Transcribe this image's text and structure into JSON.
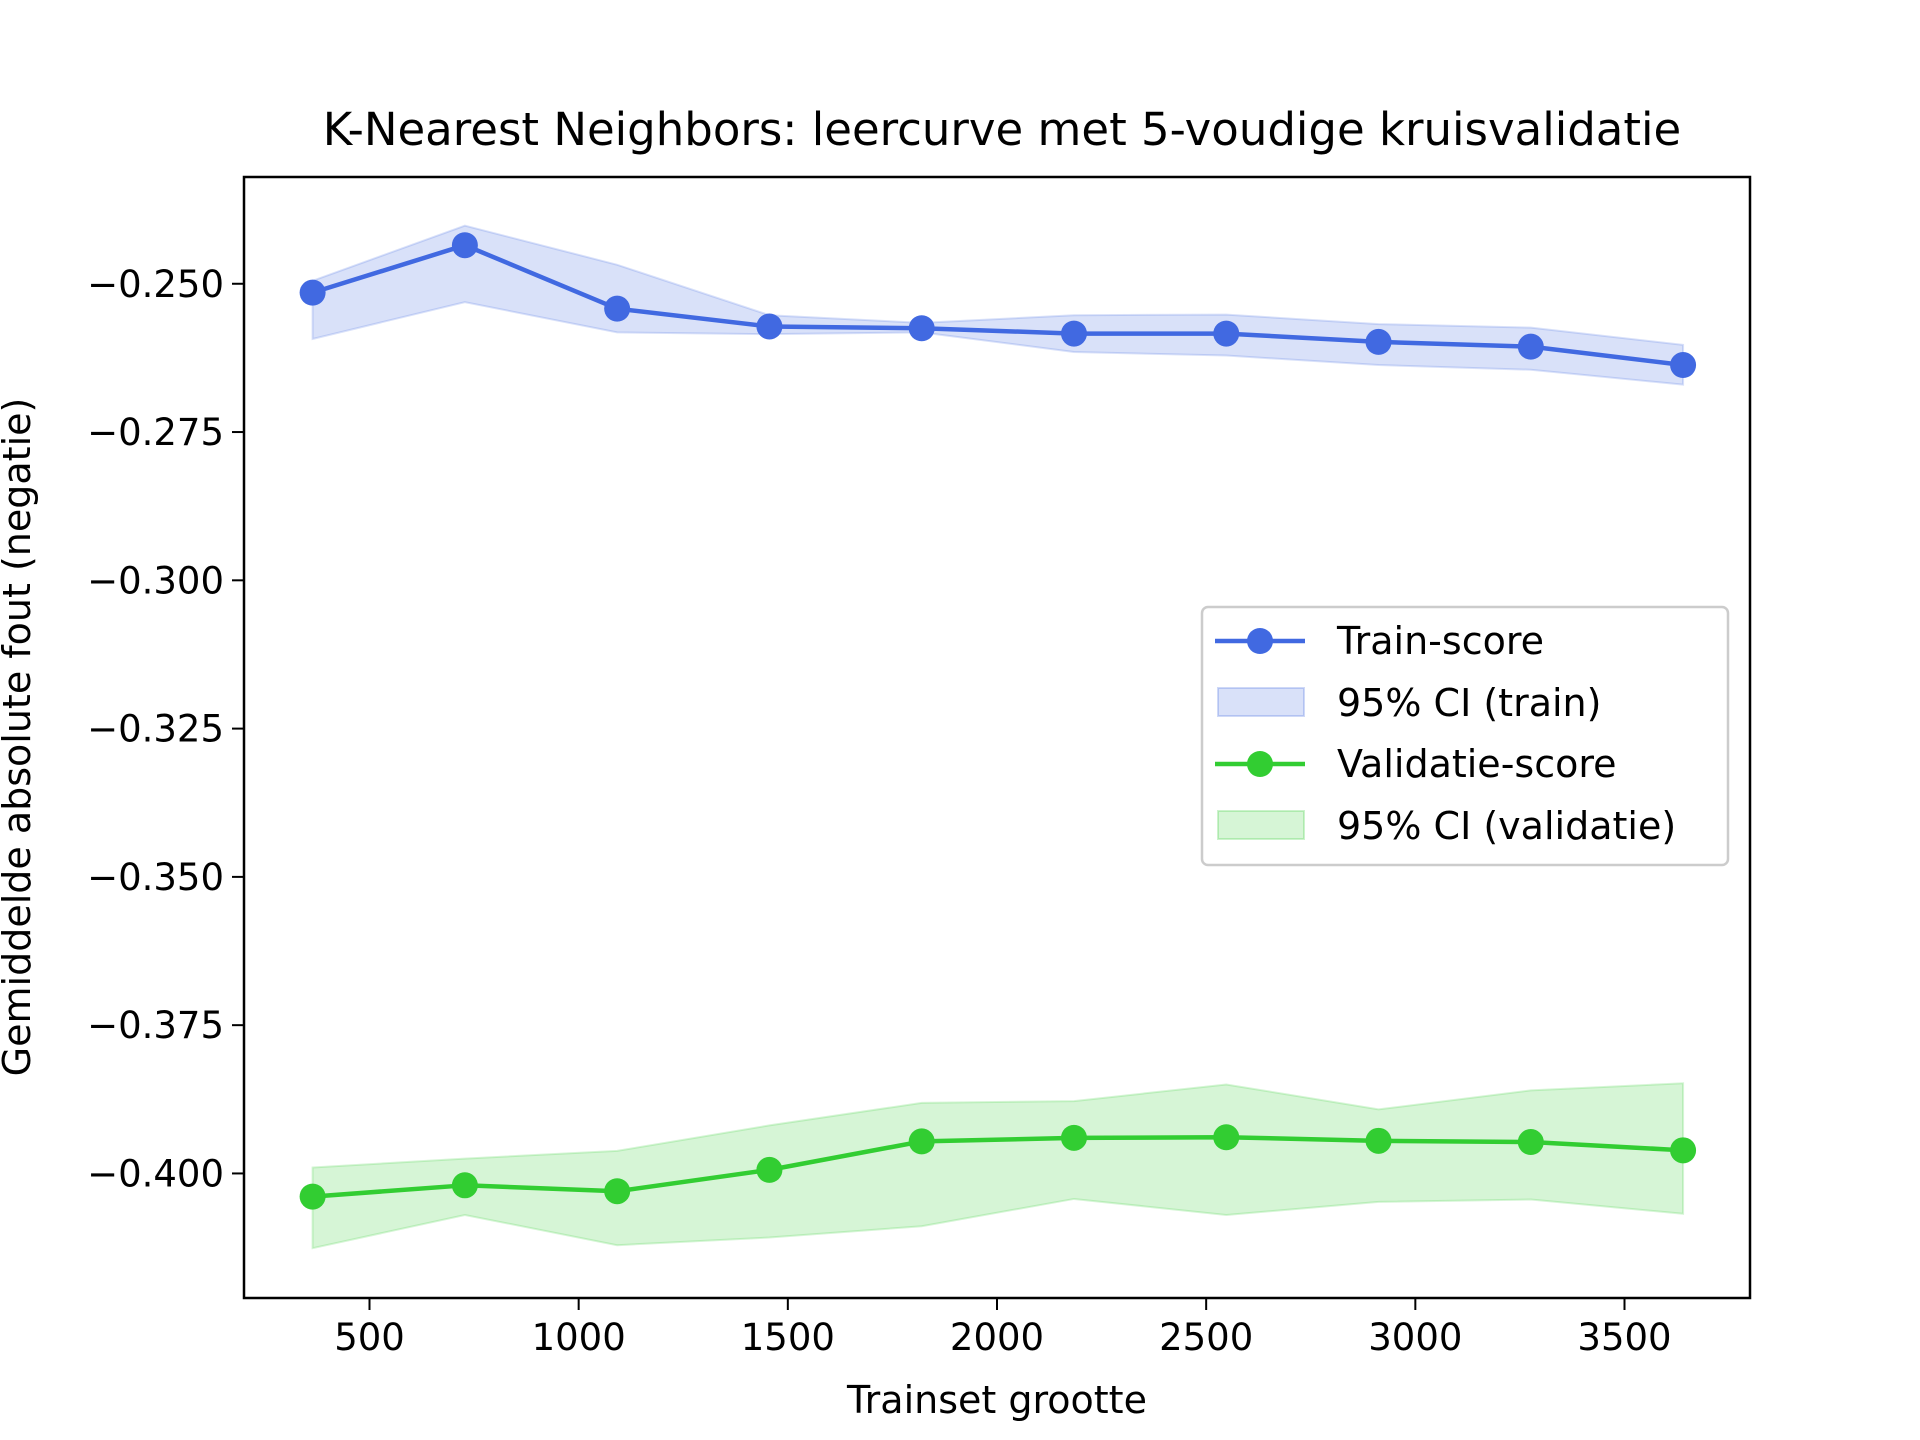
{
  "chart_data": {
    "type": "line",
    "title": "K-Nearest Neighbors: leercurve met 5-voudige kruisvalidatie",
    "xlabel": "Trainset grootte",
    "ylabel": "Gemiddelde absolute fout (negatie)",
    "xlim": [
      200,
      3800
    ],
    "ylim": [
      -0.421,
      -0.232
    ],
    "xticks": [
      500,
      1000,
      1500,
      2000,
      2500,
      3000,
      3500
    ],
    "xtick_labels": [
      "500",
      "1000",
      "1500",
      "2000",
      "2500",
      "3000",
      "3500"
    ],
    "yticks": [
      -0.25,
      -0.275,
      -0.3,
      -0.325,
      -0.35,
      -0.375,
      -0.4
    ],
    "ytick_labels": [
      "−0.250",
      "−0.275",
      "−0.300",
      "−0.325",
      "−0.350",
      "−0.375",
      "−0.400"
    ],
    "grid": false,
    "legend_position": "center-right",
    "x": [
      364,
      728,
      1092,
      1456,
      1820,
      2184,
      2548,
      2912,
      3276,
      3640
    ],
    "series": [
      {
        "name": "Train-score",
        "color": "#4169e1",
        "values": [
          -0.2515,
          -0.2435,
          -0.2542,
          -0.2572,
          -0.2575,
          -0.2584,
          -0.2584,
          -0.2598,
          -0.2606,
          -0.2637
        ],
        "ci_name": "95% CI (train)",
        "ci_lower": [
          -0.2593,
          -0.2531,
          -0.2582,
          -0.2585,
          -0.2582,
          -0.2615,
          -0.2621,
          -0.2637,
          -0.2645,
          -0.267
        ],
        "ci_upper": [
          -0.2495,
          -0.2402,
          -0.2468,
          -0.2553,
          -0.2566,
          -0.2553,
          -0.2552,
          -0.2568,
          -0.2574,
          -0.2603
        ]
      },
      {
        "name": "Validatie-score",
        "color": "#32cd32",
        "values": [
          -0.4039,
          -0.402,
          -0.403,
          -0.3994,
          -0.3946,
          -0.394,
          -0.3939,
          -0.3945,
          -0.3947,
          -0.3961
        ],
        "ci_name": "95% CI (validatie)",
        "ci_lower": [
          -0.4126,
          -0.407,
          -0.4121,
          -0.4108,
          -0.4089,
          -0.4043,
          -0.407,
          -0.4048,
          -0.4044,
          -0.4068
        ],
        "ci_upper": [
          -0.399,
          -0.3975,
          -0.3962,
          -0.3919,
          -0.3881,
          -0.3878,
          -0.385,
          -0.3892,
          -0.386,
          -0.3848
        ]
      }
    ]
  }
}
